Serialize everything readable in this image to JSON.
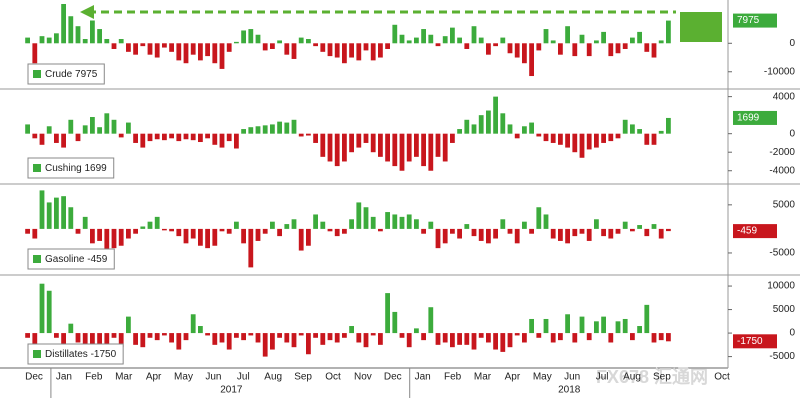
{
  "chart_data": [
    {
      "type": "bar",
      "name": "Crude",
      "color_up": "#3cab3c",
      "color_down": "#c8161d",
      "grid": false,
      "ylim": [
        -15000,
        14500
      ],
      "yticks": [
        0,
        -10000
      ],
      "values": [
        2000,
        -7000,
        2500,
        2000,
        3500,
        13800,
        9500,
        6000,
        1500,
        8000,
        5000,
        1500,
        -2000,
        1500,
        -3000,
        -4000,
        -1000,
        -4000,
        -5000,
        -1500,
        -3000,
        -6000,
        -7000,
        -4000,
        -6000,
        -4500,
        -7000,
        -9000,
        -3000,
        500,
        4500,
        5000,
        3000,
        -2500,
        -2000,
        1000,
        -4000,
        -5500,
        2000,
        1500,
        -1000,
        -3000,
        -4500,
        -5000,
        -7000,
        -5000,
        -6000,
        -2500,
        -6000,
        -5000,
        -2000,
        6500,
        3000,
        1000,
        2000,
        5000,
        3000,
        -1000,
        2500,
        5500,
        2000,
        -2000,
        6000,
        2000,
        -4000,
        -1000,
        2000,
        -3500,
        -5000,
        -7000,
        -11500,
        -2500,
        5000,
        1000,
        -4000,
        6000,
        -4500,
        3000,
        -4500,
        1000,
        4000,
        -4500,
        -3500,
        -2000,
        2000,
        4000,
        -3000,
        -5000,
        1000,
        7975
      ]
    },
    {
      "type": "bar",
      "name": "Cushing",
      "color_up": "#3cab3c",
      "color_down": "#c8161d",
      "grid": false,
      "ylim": [
        -5000,
        4500
      ],
      "yticks": [
        4000,
        0,
        -2000,
        -4000
      ],
      "values": [
        1000,
        -500,
        -1200,
        800,
        -1000,
        -1500,
        1500,
        -800,
        900,
        1800,
        700,
        2200,
        1500,
        -400,
        1200,
        -1000,
        -1500,
        -800,
        -600,
        -700,
        -500,
        -800,
        -600,
        -700,
        -900,
        -500,
        -1200,
        -1500,
        -800,
        -1600,
        500,
        700,
        800,
        900,
        1000,
        1300,
        1200,
        1500,
        -300,
        -200,
        -1000,
        -2500,
        -3000,
        -3500,
        -3000,
        -2000,
        -1500,
        -1000,
        -2000,
        -2500,
        -3000,
        -3500,
        -4000,
        -3000,
        -2500,
        -3500,
        -4000,
        -2500,
        -3000,
        -1000,
        500,
        1500,
        1000,
        2000,
        2500,
        4000,
        2200,
        1000,
        -500,
        800,
        1200,
        -300,
        -800,
        -1000,
        -1200,
        -1500,
        -2000,
        -2600,
        -1700,
        -1500,
        -1000,
        -800,
        -500,
        1500,
        1000,
        500,
        -1200,
        -1200,
        300,
        1699
      ]
    },
    {
      "type": "bar",
      "name": "Gasoline",
      "color_up": "#3cab3c",
      "color_down": "#c8161d",
      "grid": false,
      "ylim": [
        -8750,
        8500
      ],
      "yticks": [
        5000,
        -5000
      ],
      "values": [
        -1000,
        -2000,
        8000,
        5500,
        6500,
        6800,
        4500,
        -1000,
        2500,
        -3000,
        -2500,
        -5000,
        -4000,
        -3500,
        -2000,
        -1000,
        500,
        1500,
        2500,
        -300,
        -500,
        -1500,
        -3000,
        -2000,
        -3500,
        -4000,
        -3500,
        -500,
        -1000,
        1500,
        -3000,
        -8000,
        -2500,
        -1000,
        1500,
        -1500,
        1000,
        2000,
        -4500,
        -3500,
        3000,
        1500,
        -500,
        -1500,
        -1000,
        2000,
        5500,
        4500,
        2500,
        -500,
        3500,
        3000,
        2500,
        3000,
        2000,
        -1000,
        1500,
        -4000,
        -3000,
        -1000,
        -2000,
        1000,
        -1500,
        -2500,
        -3000,
        -2000,
        2000,
        -1000,
        -3000,
        1500,
        -1000,
        4500,
        3000,
        -2000,
        -2500,
        -3000,
        -1500,
        -1000,
        -2500,
        2000,
        -1500,
        -2000,
        -1000,
        1500,
        -500,
        800,
        -1500,
        1000,
        -2000,
        -459
      ]
    },
    {
      "type": "bar",
      "name": "Distillates",
      "color_up": "#3cab3c",
      "color_down": "#c8161d",
      "grid": false,
      "ylim": [
        -7000,
        11500
      ],
      "yticks": [
        10000,
        5000,
        0,
        -5000
      ],
      "values": [
        -1000,
        -2500,
        10500,
        9000,
        -1000,
        -2500,
        2000,
        -2000,
        -3000,
        -2500,
        -3000,
        -2500,
        -1000,
        -3000,
        3500,
        -2500,
        -3000,
        -1000,
        -1500,
        -500,
        -2000,
        -3500,
        -1500,
        4000,
        1500,
        -500,
        -2500,
        -2000,
        -3500,
        -1000,
        -1500,
        -500,
        -2000,
        -5000,
        -3500,
        -1000,
        -2000,
        -3000,
        -500,
        -4500,
        -1000,
        -2500,
        -1500,
        -2000,
        -1000,
        1500,
        -2000,
        -3000,
        -500,
        -2500,
        8500,
        4500,
        -1000,
        -3000,
        1000,
        -1500,
        5500,
        -2500,
        -2000,
        -3000,
        -2500,
        -2500,
        -3500,
        -1000,
        -2000,
        -3500,
        -4000,
        -3000,
        -500,
        -2000,
        3000,
        -1000,
        3000,
        -2000,
        -1500,
        4000,
        -2000,
        3500,
        -1500,
        2500,
        3500,
        -2000,
        2500,
        3000,
        -1500,
        1500,
        6000,
        -2000,
        -1500,
        -1750
      ]
    }
  ],
  "x_axis": {
    "months": [
      "Dec",
      "Jan",
      "Feb",
      "Mar",
      "Apr",
      "May",
      "Jun",
      "Jul",
      "Aug",
      "Sep",
      "Oct",
      "Nov",
      "Dec",
      "Jan",
      "Feb",
      "Mar",
      "Apr",
      "May",
      "Jun",
      "Jul",
      "Aug",
      "Sep",
      "Oct"
    ],
    "years": [
      "2017",
      "2018"
    ]
  },
  "watermark": "FX678 汇通网"
}
